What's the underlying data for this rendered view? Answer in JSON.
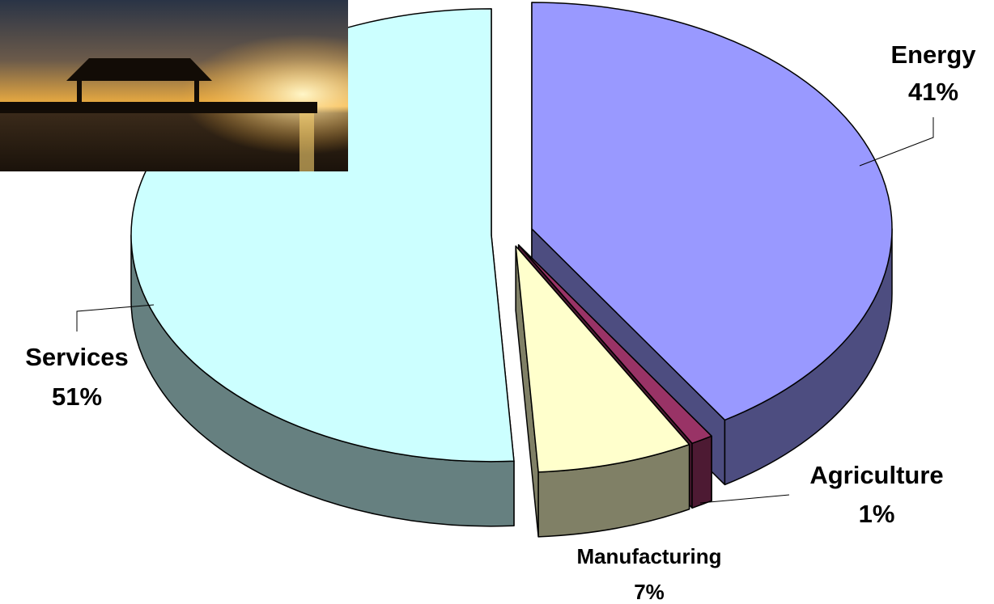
{
  "chart_data": {
    "type": "pie",
    "categories": [
      "Energy",
      "Agriculture",
      "Manufacturing",
      "Services"
    ],
    "values": [
      41,
      1,
      7,
      51
    ],
    "value_labels": [
      "41%",
      "1%",
      "7%",
      "51%"
    ],
    "colors": [
      "#9999ff",
      "#993366",
      "#ffffcc",
      "#ccffff"
    ]
  }
}
